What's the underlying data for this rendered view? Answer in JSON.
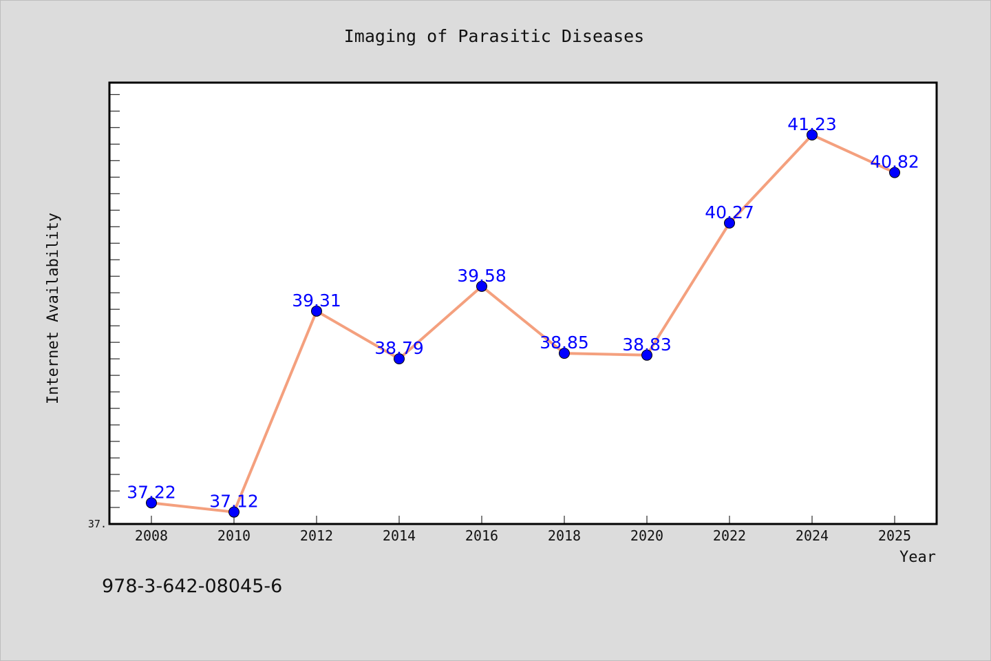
{
  "chart_data": {
    "type": "line",
    "title": "Imaging of Parasitic Diseases",
    "xlabel": "Year",
    "ylabel": "Internet Availability",
    "categories": [
      "2008",
      "2010",
      "2012",
      "2014",
      "2016",
      "2018",
      "2020",
      "2022",
      "2024",
      "2025"
    ],
    "series": [
      {
        "values": [
          37.22,
          37.12,
          39.31,
          38.79,
          39.58,
          38.85,
          38.83,
          40.27,
          41.23,
          40.82
        ]
      }
    ],
    "data_labels": [
      "37.22",
      "37.12",
      "39.31",
      "38.79",
      "39.58",
      "38.85",
      "38.83",
      "40.27",
      "41.23",
      "40.82"
    ],
    "y_min_label": "37.",
    "ylim": [
      36.99,
      41.8
    ],
    "grid": false,
    "colors": {
      "line": "#f4a07e",
      "marker": "#0000ff",
      "label": "#0000ff",
      "plot_bg": "#ffffff",
      "page_bg": "#dcdcdc"
    }
  },
  "footer": {
    "isbn": "978-3-642-08045-6"
  }
}
